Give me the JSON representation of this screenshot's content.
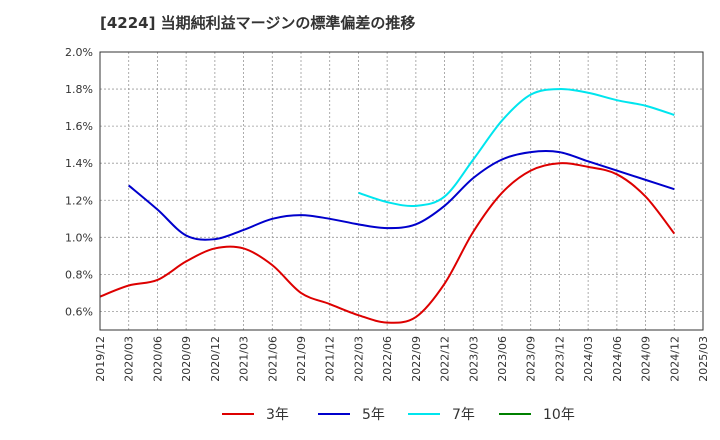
{
  "title": "[4224]  当期純利益マージンの標準偏差の推移",
  "chart_data": {
    "type": "line",
    "title": "[4224]  当期純利益マージンの標準偏差の推移",
    "xlabel": "",
    "ylabel": "",
    "x_ticks": [
      "2019/12",
      "2020/03",
      "2020/06",
      "2020/09",
      "2020/12",
      "2021/03",
      "2021/06",
      "2021/09",
      "2021/12",
      "2022/03",
      "2022/06",
      "2022/09",
      "2022/12",
      "2023/03",
      "2023/06",
      "2023/09",
      "2023/12",
      "2024/03",
      "2024/06",
      "2024/09",
      "2024/12",
      "2025/03"
    ],
    "y_ticks": [
      "0.6%",
      "0.8%",
      "1.0%",
      "1.2%",
      "1.4%",
      "1.6%",
      "1.8%",
      "2.0%"
    ],
    "ylim": [
      0.5,
      2.0
    ],
    "grid": true,
    "legend_position": "bottom",
    "series": [
      {
        "name": "3年",
        "color": "#dd0000",
        "x": [
          "2019/12",
          "2020/03",
          "2020/06",
          "2020/09",
          "2020/12",
          "2021/03",
          "2021/06",
          "2021/09",
          "2021/12",
          "2022/03",
          "2022/06",
          "2022/09",
          "2022/12",
          "2023/03",
          "2023/06",
          "2023/09",
          "2023/12",
          "2024/03",
          "2024/06",
          "2024/09",
          "2024/12"
        ],
        "values": [
          0.68,
          0.74,
          0.77,
          0.87,
          0.94,
          0.94,
          0.85,
          0.7,
          0.64,
          0.58,
          0.54,
          0.57,
          0.75,
          1.03,
          1.24,
          1.36,
          1.4,
          1.38,
          1.34,
          1.22,
          1.02
        ]
      },
      {
        "name": "5年",
        "color": "#0000cc",
        "x": [
          "2020/03",
          "2020/06",
          "2020/09",
          "2020/12",
          "2021/03",
          "2021/06",
          "2021/09",
          "2021/12",
          "2022/03",
          "2022/06",
          "2022/09",
          "2022/12",
          "2023/03",
          "2023/06",
          "2023/09",
          "2023/12",
          "2024/03",
          "2024/06",
          "2024/09",
          "2024/12"
        ],
        "values": [
          1.28,
          1.15,
          1.01,
          0.99,
          1.04,
          1.1,
          1.12,
          1.1,
          1.07,
          1.05,
          1.07,
          1.17,
          1.32,
          1.42,
          1.46,
          1.46,
          1.41,
          1.36,
          1.31,
          1.26
        ]
      },
      {
        "name": "7年",
        "color": "#00e5ee",
        "x": [
          "2022/03",
          "2022/06",
          "2022/09",
          "2022/12",
          "2023/03",
          "2023/06",
          "2023/09",
          "2023/12",
          "2024/03",
          "2024/06",
          "2024/09",
          "2024/12"
        ],
        "values": [
          1.24,
          1.19,
          1.17,
          1.22,
          1.42,
          1.63,
          1.77,
          1.8,
          1.78,
          1.74,
          1.71,
          1.66
        ]
      },
      {
        "name": "10年",
        "color": "#008000",
        "x": [],
        "values": []
      }
    ]
  }
}
